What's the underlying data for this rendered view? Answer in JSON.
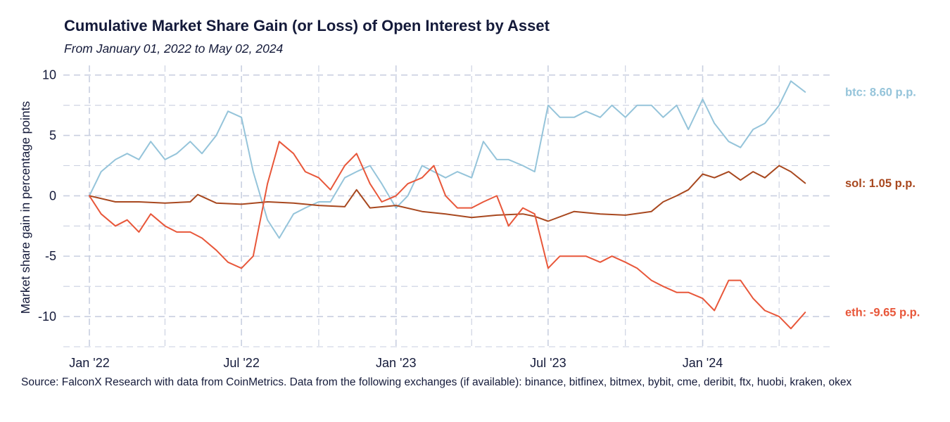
{
  "header": {
    "title": "Cumulative Market Share Gain (or Loss) of Open Interest by Asset",
    "subtitle": "From January 01, 2022 to May 02, 2024"
  },
  "footer": {
    "source": "Source: FalconX Research with data from CoinMetrics. Data from the following exchanges (if available): binance, bitfinex, bitmex, bybit, cme, deribit, ftx, huobi, kraken, okex"
  },
  "colors": {
    "btc": "#95c4da",
    "sol": "#a8481f",
    "eth": "#e8573a",
    "grid": "#c9cfe0",
    "text": "#141a3a"
  },
  "chart_data": {
    "type": "line",
    "title": "Cumulative Market Share Gain (or Loss) of Open Interest by Asset",
    "subtitle": "From January 01, 2022 to May 02, 2024",
    "xlabel": "",
    "ylabel": "Market share gain in percentage points",
    "xlim": [
      "2021-12-01",
      "2024-06-01"
    ],
    "ylim": [
      -12.5,
      10.8
    ],
    "yticks": [
      10,
      5,
      0,
      -5,
      -10
    ],
    "ytick_labels": [
      "10",
      "5",
      "0",
      "-5",
      "-10"
    ],
    "xticks": [
      "2022-01-01",
      "2022-07-01",
      "2023-01-01",
      "2023-07-01",
      "2024-01-01"
    ],
    "xtick_labels": [
      "Jan '22",
      "Jul '22",
      "Jan '23",
      "Jul '23",
      "Jan '24"
    ],
    "grid": true,
    "legend": "end-of-line labels on the right",
    "series": [
      {
        "name": "btc",
        "end_label": "btc: 8.60 p.p.",
        "color": "#95c4da",
        "x": [
          "2022-01-01",
          "2022-01-15",
          "2022-02-01",
          "2022-02-15",
          "2022-03-01",
          "2022-03-15",
          "2022-04-01",
          "2022-04-15",
          "2022-05-01",
          "2022-05-15",
          "2022-06-01",
          "2022-06-15",
          "2022-07-01",
          "2022-07-15",
          "2022-08-01",
          "2022-08-15",
          "2022-09-01",
          "2022-09-15",
          "2022-10-01",
          "2022-10-15",
          "2022-11-01",
          "2022-11-15",
          "2022-12-01",
          "2022-12-15",
          "2023-01-01",
          "2023-01-15",
          "2023-02-01",
          "2023-02-15",
          "2023-03-01",
          "2023-03-15",
          "2023-04-01",
          "2023-04-15",
          "2023-05-01",
          "2023-05-15",
          "2023-06-01",
          "2023-06-15",
          "2023-07-01",
          "2023-07-15",
          "2023-08-01",
          "2023-08-15",
          "2023-09-01",
          "2023-09-15",
          "2023-10-01",
          "2023-10-15",
          "2023-11-01",
          "2023-11-15",
          "2023-12-01",
          "2023-12-15",
          "2024-01-01",
          "2024-01-15",
          "2024-02-01",
          "2024-02-15",
          "2024-03-01",
          "2024-03-15",
          "2024-04-01",
          "2024-04-15",
          "2024-05-02"
        ],
        "values": [
          0.0,
          2.0,
          3.0,
          3.5,
          3.0,
          4.5,
          3.0,
          3.5,
          4.5,
          3.5,
          5.0,
          7.0,
          6.5,
          2.0,
          -2.0,
          -3.5,
          -1.5,
          -1.0,
          -0.5,
          -0.5,
          1.5,
          2.0,
          2.5,
          1.0,
          -1.0,
          0.0,
          2.5,
          2.0,
          1.5,
          2.0,
          1.5,
          4.5,
          3.0,
          3.0,
          2.5,
          2.0,
          7.5,
          6.5,
          6.5,
          7.0,
          6.5,
          7.5,
          6.5,
          7.5,
          7.5,
          6.5,
          7.5,
          5.5,
          8.0,
          6.0,
          4.5,
          4.0,
          5.5,
          6.0,
          7.5,
          9.5,
          8.6
        ]
      },
      {
        "name": "sol",
        "end_label": "sol: 1.05 p.p.",
        "color": "#a8481f",
        "x": [
          "2022-01-01",
          "2022-02-01",
          "2022-03-01",
          "2022-04-01",
          "2022-05-01",
          "2022-05-10",
          "2022-06-01",
          "2022-07-01",
          "2022-08-01",
          "2022-09-01",
          "2022-10-01",
          "2022-11-01",
          "2022-11-15",
          "2022-12-01",
          "2023-01-01",
          "2023-02-01",
          "2023-03-01",
          "2023-04-01",
          "2023-05-01",
          "2023-06-01",
          "2023-06-15",
          "2023-07-01",
          "2023-08-01",
          "2023-09-01",
          "2023-10-01",
          "2023-11-01",
          "2023-11-15",
          "2023-12-01",
          "2023-12-15",
          "2024-01-01",
          "2024-01-15",
          "2024-02-01",
          "2024-02-15",
          "2024-03-01",
          "2024-03-15",
          "2024-04-01",
          "2024-04-15",
          "2024-05-02"
        ],
        "values": [
          0.0,
          -0.5,
          -0.5,
          -0.6,
          -0.5,
          0.1,
          -0.6,
          -0.7,
          -0.5,
          -0.6,
          -0.8,
          -0.9,
          0.5,
          -1.0,
          -0.8,
          -1.3,
          -1.5,
          -1.8,
          -1.6,
          -1.5,
          -1.7,
          -2.1,
          -1.3,
          -1.5,
          -1.6,
          -1.3,
          -0.5,
          0.0,
          0.5,
          1.8,
          1.5,
          2.0,
          1.3,
          2.0,
          1.5,
          2.5,
          2.0,
          1.05
        ]
      },
      {
        "name": "eth",
        "end_label": "eth: -9.65 p.p.",
        "color": "#e8573a",
        "x": [
          "2022-01-01",
          "2022-01-15",
          "2022-02-01",
          "2022-02-15",
          "2022-03-01",
          "2022-03-15",
          "2022-04-01",
          "2022-04-15",
          "2022-05-01",
          "2022-05-15",
          "2022-06-01",
          "2022-06-15",
          "2022-07-01",
          "2022-07-15",
          "2022-08-01",
          "2022-08-15",
          "2022-09-01",
          "2022-09-15",
          "2022-10-01",
          "2022-10-15",
          "2022-11-01",
          "2022-11-15",
          "2022-12-01",
          "2022-12-15",
          "2023-01-01",
          "2023-01-15",
          "2023-02-01",
          "2023-02-15",
          "2023-03-01",
          "2023-03-15",
          "2023-04-01",
          "2023-04-15",
          "2023-05-01",
          "2023-05-15",
          "2023-06-01",
          "2023-06-15",
          "2023-07-01",
          "2023-07-15",
          "2023-08-01",
          "2023-08-15",
          "2023-09-01",
          "2023-09-15",
          "2023-10-01",
          "2023-10-15",
          "2023-11-01",
          "2023-11-15",
          "2023-12-01",
          "2023-12-15",
          "2024-01-01",
          "2024-01-15",
          "2024-02-01",
          "2024-02-15",
          "2024-03-01",
          "2024-03-15",
          "2024-04-01",
          "2024-04-15",
          "2024-05-02"
        ],
        "values": [
          0.0,
          -1.5,
          -2.5,
          -2.0,
          -3.0,
          -1.5,
          -2.5,
          -3.0,
          -3.0,
          -3.5,
          -4.5,
          -5.5,
          -6.0,
          -5.0,
          1.0,
          4.5,
          3.5,
          2.0,
          1.5,
          0.5,
          2.5,
          3.5,
          1.0,
          -0.5,
          0.0,
          1.0,
          1.5,
          2.5,
          0.0,
          -1.0,
          -1.0,
          -0.5,
          0.0,
          -2.5,
          -1.0,
          -1.5,
          -6.0,
          -5.0,
          -5.0,
          -5.0,
          -5.5,
          -5.0,
          -5.5,
          -6.0,
          -7.0,
          -7.5,
          -8.0,
          -8.0,
          -8.5,
          -9.5,
          -7.0,
          -7.0,
          -8.5,
          -9.5,
          -10.0,
          -11.0,
          -9.65
        ]
      }
    ]
  }
}
